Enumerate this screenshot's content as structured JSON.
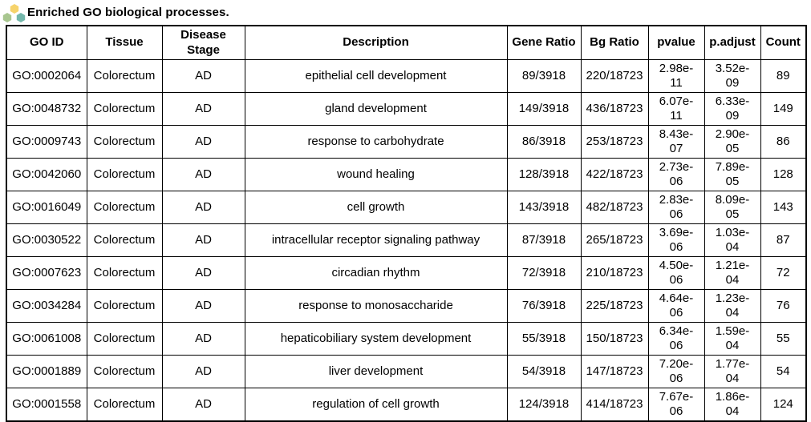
{
  "page": {
    "title": "Enriched GO biological processes."
  },
  "logo": {
    "name": "hexagon-cluster-logo",
    "colors": {
      "top_hex": "#F6D36B",
      "left_hex": "#A8C68F",
      "right_hex": "#74B7AB"
    }
  },
  "table": {
    "columns": [
      {
        "key": "go_id",
        "label": "GO ID"
      },
      {
        "key": "tissue",
        "label": "Tissue"
      },
      {
        "key": "stage",
        "label": "Disease Stage"
      },
      {
        "key": "description",
        "label": "Description"
      },
      {
        "key": "gene_ratio",
        "label": "Gene Ratio"
      },
      {
        "key": "bg_ratio",
        "label": "Bg Ratio"
      },
      {
        "key": "pvalue",
        "label": "pvalue"
      },
      {
        "key": "p_adjust",
        "label": "p.adjust"
      },
      {
        "key": "count",
        "label": "Count"
      }
    ],
    "rows": [
      {
        "go_id": "GO:0002064",
        "tissue": "Colorectum",
        "stage": "AD",
        "description": "epithelial cell development",
        "gene_ratio": "89/3918",
        "bg_ratio": "220/18723",
        "pvalue": "2.98e-11",
        "p_adjust": "3.52e-09",
        "count": "89"
      },
      {
        "go_id": "GO:0048732",
        "tissue": "Colorectum",
        "stage": "AD",
        "description": "gland development",
        "gene_ratio": "149/3918",
        "bg_ratio": "436/18723",
        "pvalue": "6.07e-11",
        "p_adjust": "6.33e-09",
        "count": "149"
      },
      {
        "go_id": "GO:0009743",
        "tissue": "Colorectum",
        "stage": "AD",
        "description": "response to carbohydrate",
        "gene_ratio": "86/3918",
        "bg_ratio": "253/18723",
        "pvalue": "8.43e-07",
        "p_adjust": "2.90e-05",
        "count": "86"
      },
      {
        "go_id": "GO:0042060",
        "tissue": "Colorectum",
        "stage": "AD",
        "description": "wound healing",
        "gene_ratio": "128/3918",
        "bg_ratio": "422/18723",
        "pvalue": "2.73e-06",
        "p_adjust": "7.89e-05",
        "count": "128"
      },
      {
        "go_id": "GO:0016049",
        "tissue": "Colorectum",
        "stage": "AD",
        "description": "cell growth",
        "gene_ratio": "143/3918",
        "bg_ratio": "482/18723",
        "pvalue": "2.83e-06",
        "p_adjust": "8.09e-05",
        "count": "143"
      },
      {
        "go_id": "GO:0030522",
        "tissue": "Colorectum",
        "stage": "AD",
        "description": "intracellular receptor signaling pathway",
        "gene_ratio": "87/3918",
        "bg_ratio": "265/18723",
        "pvalue": "3.69e-06",
        "p_adjust": "1.03e-04",
        "count": "87"
      },
      {
        "go_id": "GO:0007623",
        "tissue": "Colorectum",
        "stage": "AD",
        "description": "circadian rhythm",
        "gene_ratio": "72/3918",
        "bg_ratio": "210/18723",
        "pvalue": "4.50e-06",
        "p_adjust": "1.21e-04",
        "count": "72"
      },
      {
        "go_id": "GO:0034284",
        "tissue": "Colorectum",
        "stage": "AD",
        "description": "response to monosaccharide",
        "gene_ratio": "76/3918",
        "bg_ratio": "225/18723",
        "pvalue": "4.64e-06",
        "p_adjust": "1.23e-04",
        "count": "76"
      },
      {
        "go_id": "GO:0061008",
        "tissue": "Colorectum",
        "stage": "AD",
        "description": "hepaticobiliary system development",
        "gene_ratio": "55/3918",
        "bg_ratio": "150/18723",
        "pvalue": "6.34e-06",
        "p_adjust": "1.59e-04",
        "count": "55"
      },
      {
        "go_id": "GO:0001889",
        "tissue": "Colorectum",
        "stage": "AD",
        "description": "liver development",
        "gene_ratio": "54/3918",
        "bg_ratio": "147/18723",
        "pvalue": "7.20e-06",
        "p_adjust": "1.77e-04",
        "count": "54"
      },
      {
        "go_id": "GO:0001558",
        "tissue": "Colorectum",
        "stage": "AD",
        "description": "regulation of cell growth",
        "gene_ratio": "124/3918",
        "bg_ratio": "414/18723",
        "pvalue": "7.67e-06",
        "p_adjust": "1.86e-04",
        "count": "124"
      }
    ]
  }
}
